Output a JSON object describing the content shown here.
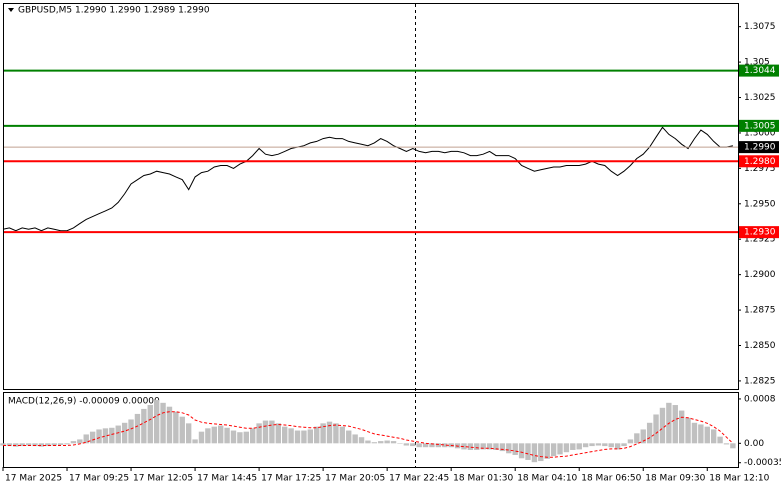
{
  "chart_data": [
    {
      "type": "line",
      "title": "GBPUSD,M5  1.2990 1.2990 1.2989 1.2990",
      "xlim": [
        0,
        114.8
      ],
      "xticks": [
        {
          "value": 0,
          "label": "17 Mar 2025"
        },
        {
          "value": 10,
          "label": "17 Mar 09:25"
        },
        {
          "value": 20,
          "label": "17 Mar 12:05"
        },
        {
          "value": 30,
          "label": "17 Mar 14:45"
        },
        {
          "value": 40,
          "label": "17 Mar 17:25"
        },
        {
          "value": 50,
          "label": "17 Mar 20:05"
        },
        {
          "value": 60,
          "label": "17 Mar 22:45"
        },
        {
          "value": 70,
          "label": "18 Mar 01:30"
        },
        {
          "value": 80,
          "label": "18 Mar 04:10"
        },
        {
          "value": 90,
          "label": "18 Mar 06:50"
        },
        {
          "value": 100,
          "label": "18 Mar 09:30"
        },
        {
          "value": 110,
          "label": "18 Mar 12:10"
        }
      ],
      "ylim": [
        1.28193,
        1.3091
      ],
      "yticks": [
        1.3075,
        1.305,
        1.3025,
        {
          "value": 1.3,
          "label": "1.3000"
        },
        1.2975,
        {
          "value": 1.295,
          "label": "1.2950"
        },
        1.2925,
        {
          "value": 1.29,
          "label": "1.2900"
        },
        1.2875,
        {
          "value": 1.285,
          "label": "1.2850"
        },
        1.2825
      ],
      "levels": [
        {
          "value": 1.3044,
          "color": "#008000"
        },
        {
          "value": 1.3005,
          "color": "#008000"
        },
        {
          "value": 1.299,
          "label": "1.2990",
          "color": "#000000"
        },
        {
          "value": 1.298,
          "label": "1.2980",
          "color": "#ff0000"
        },
        {
          "value": 1.293,
          "label": "1.2930",
          "color": "#ff0000"
        }
      ],
      "series": [
        {
          "color": "#000000",
          "values": [
            1.2932,
            1.2933,
            1.2931,
            1.2933,
            1.2932,
            1.2933,
            1.2931,
            1.2933,
            1.2932,
            1.2931,
            1.2931,
            1.2933,
            1.2936,
            1.2939,
            1.2941,
            1.2943,
            1.2945,
            1.2947,
            1.2951,
            1.2957,
            1.2964,
            1.2967,
            1.297,
            1.2971,
            1.2973,
            1.2972,
            1.2971,
            1.2969,
            1.2967,
            1.296,
            1.2969,
            1.2972,
            1.2973,
            1.2976,
            1.2977,
            1.2977,
            1.2975,
            1.2978,
            1.298,
            1.2984,
            1.2989,
            1.2985,
            1.2984,
            1.2985,
            1.2987,
            1.2989,
            1.299,
            1.2991,
            1.2993,
            1.2994,
            1.2996,
            1.2997,
            1.2996,
            1.2996,
            1.2994,
            1.2993,
            1.2992,
            1.2991,
            1.2993,
            1.2996,
            1.2994,
            1.2991,
            1.2989,
            1.2987,
            1.2989,
            1.2987,
            1.2986,
            1.2987,
            1.2987,
            1.2986,
            1.2987,
            1.2987,
            1.2986,
            1.2984,
            1.2984,
            1.2985,
            1.2987,
            1.2984,
            1.2984,
            1.2984,
            1.2982,
            1.2977,
            1.2975,
            1.2973,
            1.2974,
            1.2975,
            1.2976,
            1.2976,
            1.2977,
            1.2977,
            1.2977,
            1.2978,
            1.298,
            1.2978,
            1.2977,
            1.2973,
            1.297,
            1.2973,
            1.2977,
            1.2982,
            1.2985,
            1.299,
            1.2997,
            1.3004,
            1.2999,
            1.2996,
            1.2992,
            1.2989,
            1.2996,
            1.3002,
            1.2999,
            1.2994,
            1.299,
            1.299,
            1.2991
          ]
        }
      ]
    },
    {
      "type": "macd",
      "title": "MACD(12,26,9) -0.00009 0.00000",
      "xlim": [
        0,
        114.8
      ],
      "ylim": [
        -0.000427,
        0.000907
      ],
      "yticks": [
        0.0008,
        {
          "value": 0,
          "label": "0.00"
        },
        -0.00035
      ],
      "series": [
        {
          "color": "#c0c0c0",
          "values": [
            -4e-05,
            -5e-05,
            -6e-05,
            -5e-05,
            -4e-05,
            -5e-05,
            -6e-05,
            -5e-05,
            -4e-05,
            -3e-05,
            -2e-05,
            4e-05,
            7e-05,
            0.00016,
            0.00021,
            0.00025,
            0.00027,
            0.00028,
            0.00032,
            0.00037,
            0.00043,
            0.00053,
            0.00062,
            0.00069,
            0.00078,
            0.00073,
            0.00066,
            0.00057,
            0.00048,
            0.00036,
            7e-05,
            0.00021,
            0.00027,
            0.0003,
            0.00032,
            0.00028,
            0.00023,
            0.0002,
            0.00021,
            0.00027,
            0.00036,
            0.00041,
            0.00041,
            0.00036,
            0.0003,
            0.00027,
            0.00023,
            0.00023,
            0.00025,
            0.0003,
            0.00036,
            0.00039,
            0.00036,
            0.0003,
            0.00023,
            0.00016,
            0.00011,
            5e-05,
            2e-05,
            4e-05,
            5e-05,
            4e-05,
            0,
            -4e-05,
            -5e-05,
            -7e-05,
            -7e-05,
            -7e-05,
            -7e-05,
            -7e-05,
            -7e-05,
            -9e-05,
            -0.00011,
            -0.00012,
            -0.00012,
            -0.00011,
            -0.00011,
            -0.00012,
            -0.00014,
            -0.00018,
            -0.00021,
            -0.00027,
            -0.0003,
            -0.00034,
            -0.00032,
            -0.00028,
            -0.00023,
            -0.0002,
            -0.00016,
            -0.00012,
            -0.00011,
            -7e-05,
            -5e-05,
            -4e-05,
            -5e-05,
            -7e-05,
            -0.00011,
            -5e-05,
            7e-05,
            0.00018,
            0.00025,
            0.00037,
            0.00052,
            0.00064,
            0.00073,
            0.00069,
            0.00059,
            0.00046,
            0.00037,
            0.00034,
            0.0003,
            0.00025,
            0.00012,
            -2e-05,
            -9e-05
          ]
        },
        {
          "color": "#ff0000",
          "values": [
            -4e-05,
            -4e-05,
            -4e-05,
            -4e-05,
            -4e-05,
            -4e-05,
            -4e-05,
            -4e-05,
            -4e-05,
            -4e-05,
            -4e-05,
            -3e-05,
            -1e-05,
            2e-05,
            6e-05,
            0.0001,
            0.00013,
            0.00016,
            0.00019,
            0.00022,
            0.00026,
            0.00031,
            0.00037,
            0.00043,
            0.0005,
            0.00055,
            0.00057,
            0.00057,
            0.00055,
            0.00051,
            0.00042,
            0.00038,
            0.00036,
            0.00035,
            0.00034,
            0.00033,
            0.00031,
            0.00029,
            0.00027,
            0.00027,
            0.00029,
            0.00031,
            0.00033,
            0.00034,
            0.00033,
            0.00032,
            0.0003,
            0.00029,
            0.00028,
            0.00028,
            0.0003,
            0.00032,
            0.00033,
            0.00032,
            0.00031,
            0.00028,
            0.00025,
            0.00021,
            0.00017,
            0.00015,
            0.00013,
            0.00011,
            9e-05,
            6e-05,
            4e-05,
            2e-05,
            0,
            -1e-05,
            -2e-05,
            -3e-05,
            -4e-05,
            -5e-05,
            -6e-05,
            -7e-05,
            -8e-05,
            -9e-05,
            -9e-05,
            -0.0001,
            -0.00011,
            -0.00012,
            -0.00014,
            -0.00016,
            -0.00019,
            -0.00022,
            -0.00024,
            -0.00025,
            -0.00025,
            -0.00024,
            -0.00023,
            -0.00021,
            -0.00019,
            -0.00017,
            -0.00015,
            -0.00013,
            -0.00011,
            -0.0001,
            -0.0001,
            -9e-05,
            -6e-05,
            -1e-05,
            4e-05,
            0.0001,
            0.00018,
            0.00027,
            0.00036,
            0.00043,
            0.00047,
            0.00046,
            0.00043,
            0.0004,
            0.00036,
            0.0003,
            0.00022,
            0.00011,
            0
          ]
        }
      ]
    }
  ]
}
